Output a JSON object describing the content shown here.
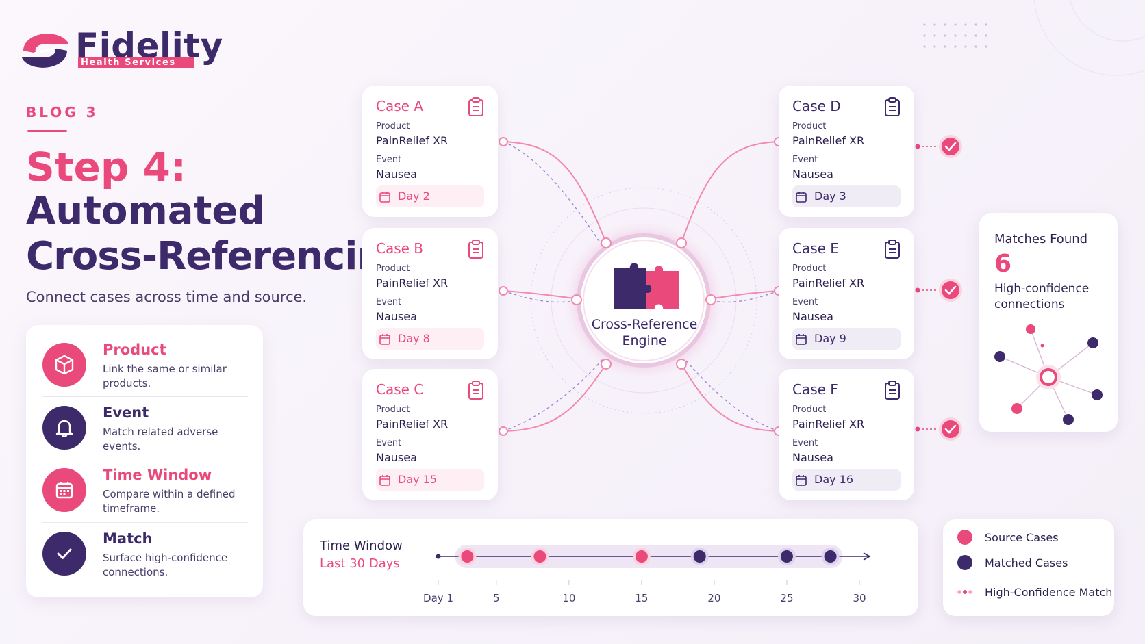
{
  "brand": {
    "name": "Fidelity",
    "tagline": "Health Services"
  },
  "blog_label": "BLOG 3",
  "headline": {
    "step": "Step 4:",
    "line1": "Automated",
    "line2": "Cross-Referencing"
  },
  "subtitle": "Connect cases across time and source.",
  "features": [
    {
      "title": "Product",
      "desc": "Link the same or similar products.",
      "icon": "cube-icon"
    },
    {
      "title": "Event",
      "desc": "Match related adverse events.",
      "icon": "bell-icon"
    },
    {
      "title": "Time Window",
      "desc": "Compare within a defined timeframe.",
      "icon": "calendar-icon"
    },
    {
      "title": "Match",
      "desc": "Surface high-confidence connections.",
      "icon": "check-icon"
    }
  ],
  "case_labels": {
    "product": "Product",
    "event": "Event"
  },
  "cases": [
    {
      "name": "Case A",
      "product": "PainRelief XR",
      "event": "Nausea",
      "day": "Day 2"
    },
    {
      "name": "Case B",
      "product": "PainRelief XR",
      "event": "Nausea",
      "day": "Day 8"
    },
    {
      "name": "Case C",
      "product": "PainRelief XR",
      "event": "Nausea",
      "day": "Day 15"
    },
    {
      "name": "Case D",
      "product": "PainRelief XR",
      "event": "Nausea",
      "day": "Day 3"
    },
    {
      "name": "Case E",
      "product": "PainRelief XR",
      "event": "Nausea",
      "day": "Day 9"
    },
    {
      "name": "Case F",
      "product": "PainRelief XR",
      "event": "Nausea",
      "day": "Day 16"
    }
  ],
  "engine": {
    "line1": "Cross-Reference",
    "line2": "Engine"
  },
  "matches": {
    "title": "Matches Found",
    "count": "6",
    "desc": "High-confidence connections"
  },
  "timeline": {
    "title": "Time Window",
    "subtitle": "Last 30 Days",
    "ticks": [
      "Day 1",
      "5",
      "10",
      "15",
      "20",
      "25",
      "30"
    ],
    "source_days": [
      3,
      8,
      15
    ],
    "matched_days": [
      19,
      25,
      28
    ]
  },
  "legend": {
    "source": "Source Cases",
    "matched": "Matched Cases",
    "high": "High-Confidence Match"
  },
  "colors": {
    "pink": "#e9497b",
    "purple": "#3d2a6b"
  }
}
